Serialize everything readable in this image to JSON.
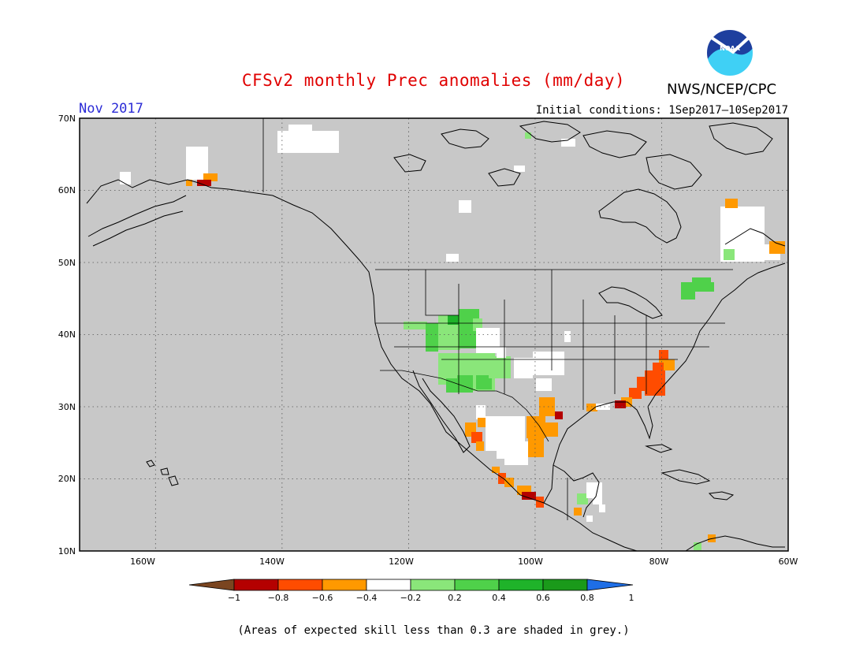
{
  "header": {
    "title": "CFSv2 monthly Prec anomalies (mm/day)",
    "month": "Nov 2017",
    "organization": "NWS/NCEP/CPC",
    "logo_text": "NOAA",
    "initial_conditions": "Initial conditions: 1Sep2017–10Sep2017"
  },
  "map": {
    "latitude_labels": [
      "70N",
      "60N",
      "50N",
      "40N",
      "30N",
      "20N",
      "10N"
    ],
    "longitude_labels": [
      "160W",
      "140W",
      "120W",
      "100W",
      "80W",
      "60W"
    ],
    "background_color": "#c8c8c8",
    "land_color": "#c8c8c8",
    "lon_range": [
      -172,
      -60
    ],
    "lat_range": [
      10,
      70
    ],
    "anomaly_regions": [
      {
        "region": "Southwest US / Great Basin",
        "class": "0.2 to 0.4"
      },
      {
        "region": "Central Rockies",
        "class": "0.4 to 0.6"
      },
      {
        "region": "Southeast US coast (Carolinas, Georgia)",
        "class": "-0.8 to -0.6"
      },
      {
        "region": "Florida panhandle / Gulf coast",
        "class": "-0.6 to -0.4"
      },
      {
        "region": "Texas Gulf coast",
        "class": "-0.4 to -0.2"
      },
      {
        "region": "West Mexico coast",
        "class": "-0.6 to -0.4"
      },
      {
        "region": "Southern Alaska coast",
        "class": "-0.8 to -0.6"
      },
      {
        "region": "New England / Quebec",
        "class": "0.2 to 0.6"
      },
      {
        "region": "Labrador",
        "class": "-0.2 to 0.2"
      }
    ]
  },
  "colorbar": {
    "ticks": [
      "−1",
      "−0.8",
      "−0.6",
      "−0.4",
      "−0.2",
      "0.2",
      "0.4",
      "0.6",
      "0.8",
      "1"
    ],
    "colors": [
      "#7a4520",
      "#b40000",
      "#ff4c00",
      "#ff9900",
      "#ffffff",
      "#8ae67a",
      "#4fd14a",
      "#1fb32a",
      "#1a9a1a",
      "#1e6ee6"
    ]
  },
  "footnote": "(Areas of expected skill less than 0.3 are shaded in grey.)"
}
